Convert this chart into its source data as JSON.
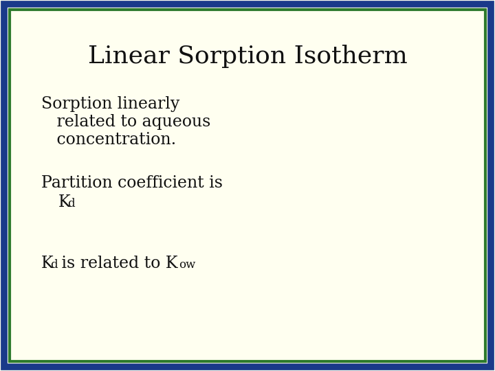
{
  "title": "Linear Sorption Isotherm",
  "title_fontsize": 26,
  "title_color": "#111111",
  "background_color": "#FFFFF0",
  "border_color_outer": "#1a3a8a",
  "border_color_inner": "#2d7a2d",
  "text_color": "#111111",
  "body_fontsize": 17,
  "line1": "Sorption linearly",
  "line2": "   related to aqueous",
  "line3": "   concentration.",
  "line4": "Partition coefficient is"
}
